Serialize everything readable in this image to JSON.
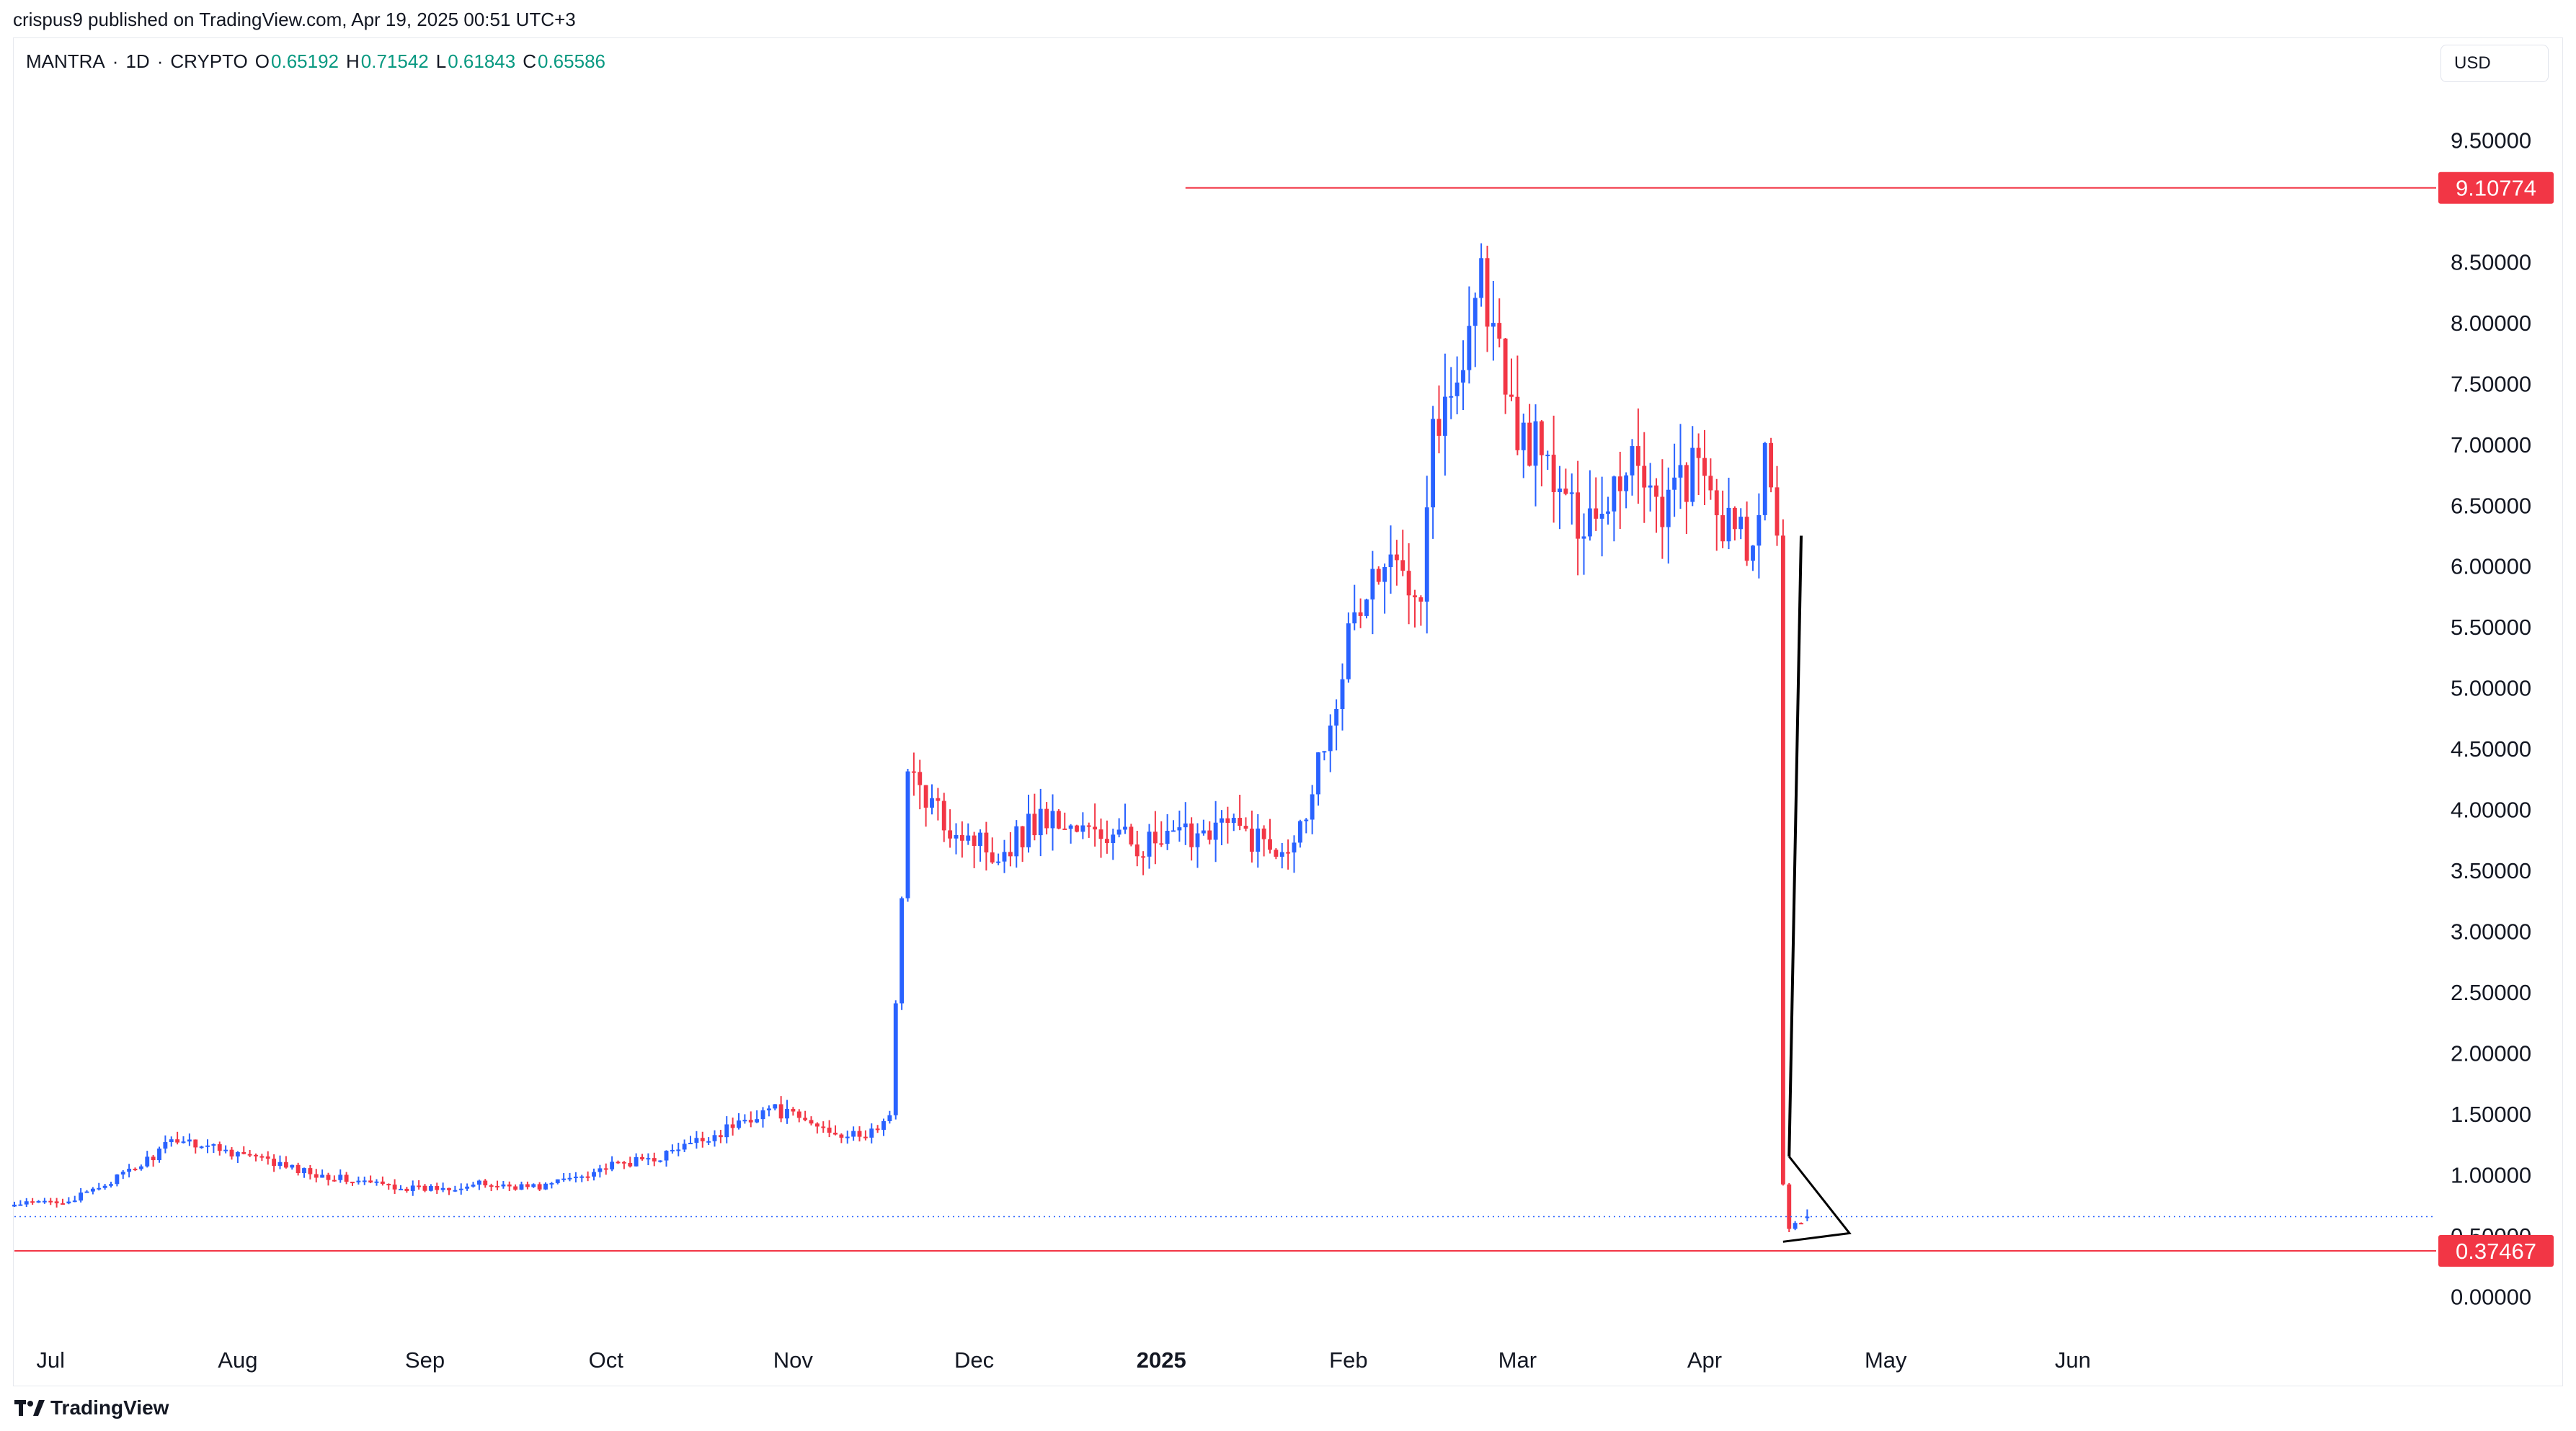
{
  "publisher": {
    "author": "crispus9",
    "text": "crispus9 published on TradingView.com, Apr 19, 2025 00:51 UTC+3"
  },
  "legend": {
    "symbol": "MANTRA",
    "interval": "1D",
    "exchange": "CRYPTO",
    "open_label": "O",
    "open": "0.65192",
    "high_label": "H",
    "high": "0.71542",
    "low_label": "L",
    "low": "0.61843",
    "close_label": "C",
    "close": "0.65586"
  },
  "currency": "USD",
  "brand": "TradingView",
  "colors": {
    "up": "#2962ff",
    "down": "#f23645",
    "level": "#f23645",
    "legend_value": "#089981",
    "current_price_line": "#2962ff"
  },
  "chart_data": {
    "type": "candlestick",
    "ylim": [
      -0.3,
      10.0
    ],
    "y_ticks": [
      "0.00000",
      "0.50000",
      "1.00000",
      "1.50000",
      "2.00000",
      "2.50000",
      "3.00000",
      "3.50000",
      "4.00000",
      "4.50000",
      "5.00000",
      "5.50000",
      "6.00000",
      "6.50000",
      "7.00000",
      "7.50000",
      "8.00000",
      "8.50000",
      "9.50000"
    ],
    "x_labels": [
      {
        "date": "2024-07-01",
        "label": "Jul",
        "bold": false
      },
      {
        "date": "2024-08-01",
        "label": "Aug",
        "bold": false
      },
      {
        "date": "2024-09-01",
        "label": "Sep",
        "bold": false
      },
      {
        "date": "2024-10-01",
        "label": "Oct",
        "bold": false
      },
      {
        "date": "2024-11-01",
        "label": "Nov",
        "bold": false
      },
      {
        "date": "2024-12-01",
        "label": "Dec",
        "bold": false
      },
      {
        "date": "2025-01-01",
        "label": "2025",
        "bold": true
      },
      {
        "date": "2025-02-01",
        "label": "Feb",
        "bold": false
      },
      {
        "date": "2025-03-01",
        "label": "Mar",
        "bold": false
      },
      {
        "date": "2025-04-01",
        "label": "Apr",
        "bold": false
      },
      {
        "date": "2025-05-01",
        "label": "May",
        "bold": false
      },
      {
        "date": "2025-06-01",
        "label": "Jun",
        "bold": false
      }
    ],
    "x_range": [
      "2024-06-25",
      "2025-07-30"
    ],
    "levels": [
      {
        "value": 9.10774,
        "label": "9.10774",
        "from_date": "2025-01-05"
      },
      {
        "value": 0.37467,
        "label": "0.37467",
        "from_date": "2024-06-25"
      }
    ],
    "current_price": 0.65586,
    "anchors": [
      [
        "2024-06-25",
        0.75
      ],
      [
        "2024-07-05",
        0.8
      ],
      [
        "2024-07-15",
        1.05
      ],
      [
        "2024-07-22",
        1.3
      ],
      [
        "2024-08-01",
        1.18
      ],
      [
        "2024-08-10",
        1.05
      ],
      [
        "2024-08-20",
        0.95
      ],
      [
        "2024-08-31",
        0.88
      ],
      [
        "2024-09-10",
        0.92
      ],
      [
        "2024-09-20",
        0.9
      ],
      [
        "2024-09-30",
        1.05
      ],
      [
        "2024-10-10",
        1.15
      ],
      [
        "2024-10-20",
        1.35
      ],
      [
        "2024-10-28",
        1.55
      ],
      [
        "2024-11-05",
        1.4
      ],
      [
        "2024-11-12",
        1.3
      ],
      [
        "2024-11-17",
        1.45
      ],
      [
        "2024-11-18",
        2.45
      ],
      [
        "2024-11-20",
        4.3
      ],
      [
        "2024-11-25",
        3.95
      ],
      [
        "2024-12-05",
        3.65
      ],
      [
        "2024-12-12",
        3.95
      ],
      [
        "2024-12-20",
        3.8
      ],
      [
        "2025-01-01",
        3.7
      ],
      [
        "2025-01-10",
        3.9
      ],
      [
        "2025-01-20",
        3.7
      ],
      [
        "2025-01-24",
        3.85
      ],
      [
        "2025-01-28",
        4.6
      ],
      [
        "2025-02-01",
        5.4
      ],
      [
        "2025-02-05",
        5.9
      ],
      [
        "2025-02-10",
        6.0
      ],
      [
        "2025-02-13",
        5.9
      ],
      [
        "2025-02-15",
        7.2
      ],
      [
        "2025-02-18",
        7.3
      ],
      [
        "2025-02-21",
        8.1
      ],
      [
        "2025-02-23",
        8.4
      ],
      [
        "2025-02-28",
        7.2
      ],
      [
        "2025-03-05",
        6.9
      ],
      [
        "2025-03-10",
        6.4
      ],
      [
        "2025-03-15",
        6.5
      ],
      [
        "2025-03-20",
        6.95
      ],
      [
        "2025-03-25",
        6.5
      ],
      [
        "2025-03-30",
        6.8
      ],
      [
        "2025-04-05",
        6.3
      ],
      [
        "2025-04-09",
        6.1
      ],
      [
        "2025-04-11",
        6.8
      ],
      [
        "2025-04-13",
        6.2
      ],
      [
        "2025-04-14",
        0.95
      ],
      [
        "2025-04-15",
        0.55
      ],
      [
        "2025-04-18",
        0.65586
      ]
    ],
    "drawing": {
      "up_line": {
        "from": [
          "2025-04-15",
          1.15
        ],
        "to": [
          "2025-04-17",
          6.25
        ]
      },
      "wedge": [
        [
          "2025-04-15",
          1.15
        ],
        [
          "2025-04-25",
          0.52
        ],
        [
          "2025-04-14",
          0.45
        ]
      ]
    }
  }
}
